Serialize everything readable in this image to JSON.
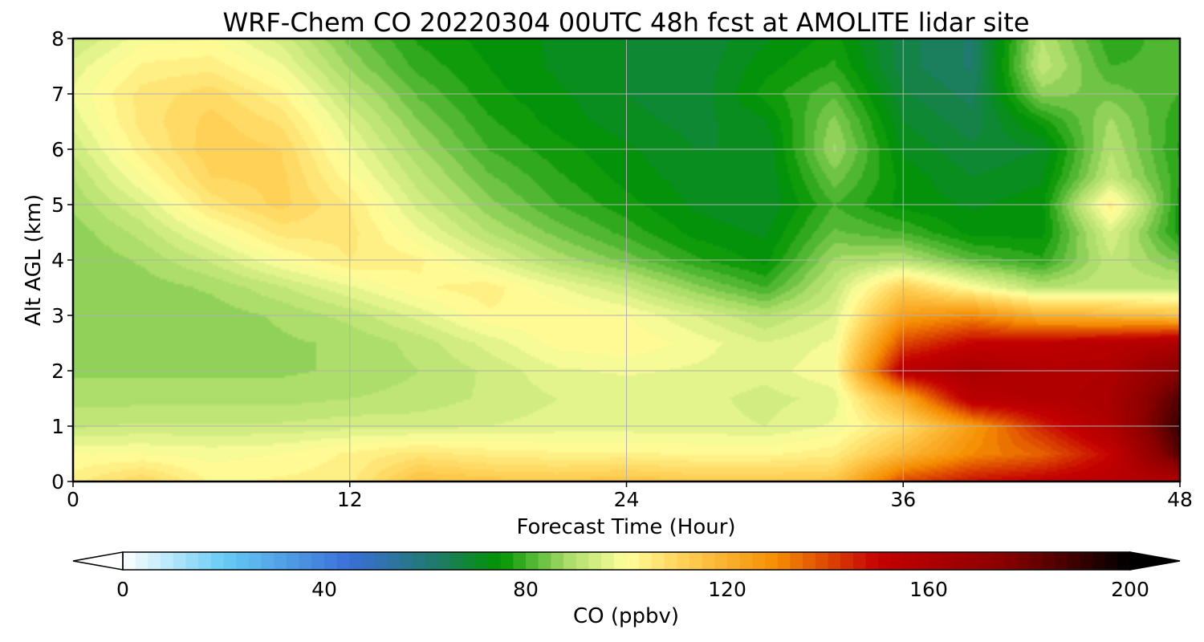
{
  "chart_data": {
    "type": "heatmap",
    "title": "WRF-Chem CO  20220304 00UTC 48h fcst at AMOLITE lidar site",
    "xlabel": "Forecast Time (Hour)",
    "ylabel": "Alt AGL (km)",
    "xlim": [
      0,
      48
    ],
    "ylim": [
      0,
      8
    ],
    "x_ticks": [
      0,
      12,
      24,
      36,
      48
    ],
    "y_ticks": [
      0,
      1,
      2,
      3,
      4,
      5,
      6,
      7,
      8
    ],
    "grid": true,
    "x": [
      0,
      3,
      6,
      9,
      12,
      15,
      18,
      21,
      24,
      27,
      30,
      33,
      36,
      39,
      42,
      45,
      48
    ],
    "y": [
      0,
      0.5,
      1,
      1.5,
      2,
      2.5,
      3,
      3.5,
      4,
      4.5,
      5,
      5.5,
      6,
      6.5,
      7,
      7.5,
      8
    ],
    "values": [
      [
        104,
        110,
        102,
        103,
        104,
        116,
        114,
        113,
        115,
        113,
        113,
        114,
        140,
        148,
        152,
        155,
        160
      ],
      [
        100,
        100,
        99,
        100,
        103,
        106,
        104,
        103,
        103,
        102,
        102,
        104,
        118,
        130,
        136,
        150,
        185
      ],
      [
        92,
        93,
        93,
        93,
        94,
        94,
        95,
        96,
        96,
        96,
        95,
        98,
        108,
        126,
        145,
        160,
        190
      ],
      [
        89,
        89,
        89,
        89,
        90,
        91,
        93,
        95,
        95,
        96,
        94,
        96,
        122,
        156,
        158,
        162,
        185
      ],
      [
        87,
        87,
        87,
        87,
        88,
        90,
        93,
        97,
        98,
        97,
        96,
        100,
        155,
        162,
        158,
        160,
        175
      ],
      [
        86,
        86,
        86,
        87,
        88,
        91,
        96,
        101,
        102,
        99,
        95,
        98,
        140,
        150,
        152,
        155,
        160
      ],
      [
        86,
        86,
        86,
        88,
        91,
        96,
        102,
        102,
        100,
        95,
        90,
        95,
        125,
        130,
        120,
        118,
        115
      ],
      [
        85,
        86,
        88,
        92,
        97,
        102,
        104,
        98,
        93,
        86,
        80,
        92,
        112,
        100,
        90,
        92,
        92
      ],
      [
        85,
        88,
        93,
        100,
        105,
        103,
        96,
        89,
        84,
        78,
        74,
        88,
        90,
        82,
        78,
        92,
        84
      ],
      [
        86,
        91,
        99,
        106,
        106,
        98,
        90,
        84,
        79,
        74,
        72,
        83,
        80,
        74,
        74,
        95,
        76
      ],
      [
        88,
        95,
        106,
        111,
        105,
        94,
        86,
        80,
        76,
        72,
        70,
        80,
        74,
        72,
        74,
        104,
        76
      ],
      [
        90,
        100,
        110,
        111,
        101,
        91,
        83,
        78,
        74,
        71,
        70,
        84,
        74,
        70,
        72,
        92,
        78
      ],
      [
        93,
        104,
        112,
        110,
        98,
        88,
        80,
        76,
        73,
        70,
        70,
        88,
        72,
        68,
        70,
        90,
        77
      ],
      [
        96,
        106,
        111,
        107,
        95,
        85,
        78,
        74,
        71,
        69,
        72,
        86,
        70,
        66,
        76,
        88,
        78
      ],
      [
        98,
        106,
        109,
        103,
        91,
        82,
        76,
        73,
        70,
        68,
        76,
        82,
        68,
        64,
        86,
        84,
        80
      ],
      [
        96,
        103,
        104,
        98,
        87,
        79,
        75,
        72,
        70,
        68,
        74,
        78,
        66,
        62,
        92,
        80,
        81
      ],
      [
        92,
        99,
        100,
        94,
        84,
        77,
        74,
        72,
        70,
        68,
        72,
        76,
        66,
        62,
        90,
        78,
        82
      ]
    ],
    "colorbar": {
      "label": "CO  (ppbv)",
      "min": 0,
      "max": 200,
      "ticks": [
        0,
        40,
        80,
        120,
        160,
        200
      ],
      "extend": "both",
      "stops": [
        {
          "v": 0,
          "c": "#ffffff"
        },
        {
          "v": 20,
          "c": "#66ccf5"
        },
        {
          "v": 45,
          "c": "#3a6fd8"
        },
        {
          "v": 62,
          "c": "#1f7a6b"
        },
        {
          "v": 75,
          "c": "#009400"
        },
        {
          "v": 88,
          "c": "#a6dc66"
        },
        {
          "v": 100,
          "c": "#ffff9c"
        },
        {
          "v": 112,
          "c": "#ffce52"
        },
        {
          "v": 130,
          "c": "#f58c00"
        },
        {
          "v": 150,
          "c": "#c40000"
        },
        {
          "v": 175,
          "c": "#8a0000"
        },
        {
          "v": 200,
          "c": "#000000"
        }
      ]
    }
  }
}
